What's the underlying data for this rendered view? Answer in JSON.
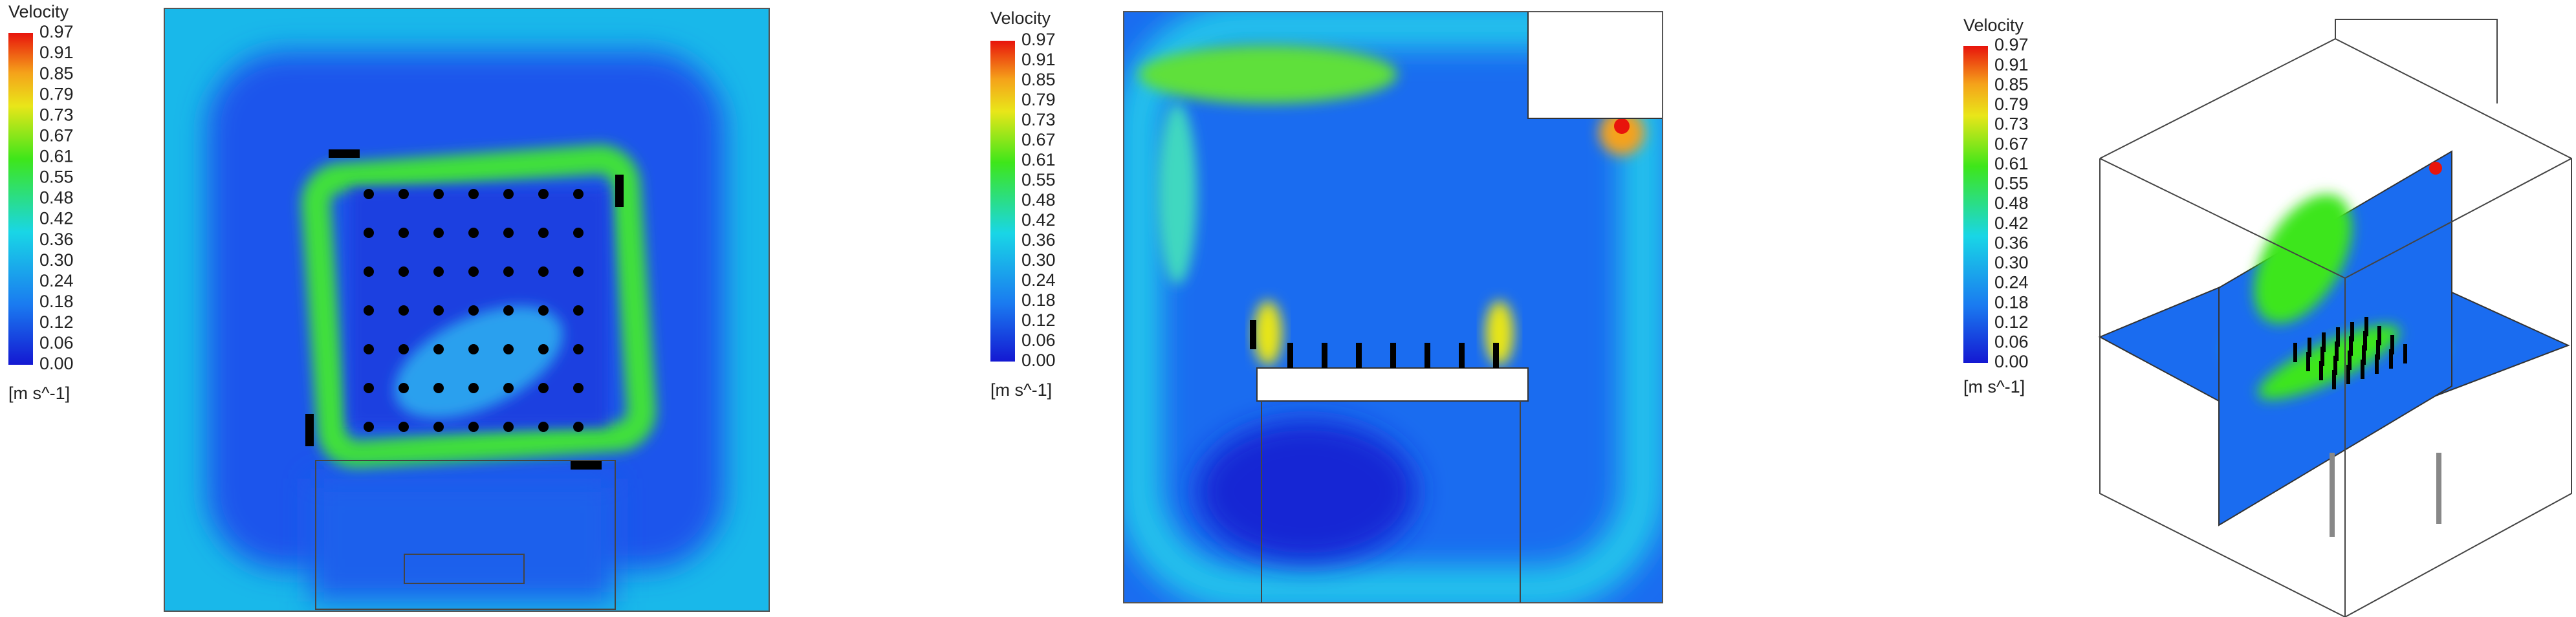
{
  "panels": [
    {
      "legend": {
        "title": "Velocity",
        "ticks": [
          "0.97",
          "0.91",
          "0.85",
          "0.79",
          "0.73",
          "0.67",
          "0.61",
          "0.55",
          "0.48",
          "0.42",
          "0.36",
          "0.30",
          "0.24",
          "0.18",
          "0.12",
          "0.06",
          "0.00"
        ],
        "unit": "[m s^-1]"
      }
    },
    {
      "legend": {
        "title": "Velocity",
        "ticks": [
          "0.97",
          "0.91",
          "0.85",
          "0.79",
          "0.73",
          "0.67",
          "0.61",
          "0.55",
          "0.48",
          "0.42",
          "0.36",
          "0.30",
          "0.24",
          "0.18",
          "0.12",
          "0.06",
          "0.00"
        ],
        "unit": "[m s^-1]"
      }
    },
    {
      "legend": {
        "title": "Velocity",
        "ticks": [
          "0.97",
          "0.91",
          "0.85",
          "0.79",
          "0.73",
          "0.67",
          "0.61",
          "0.55",
          "0.48",
          "0.42",
          "0.36",
          "0.30",
          "0.24",
          "0.18",
          "0.12",
          "0.06",
          "0.00"
        ],
        "unit": "[m s^-1]"
      }
    }
  ]
}
